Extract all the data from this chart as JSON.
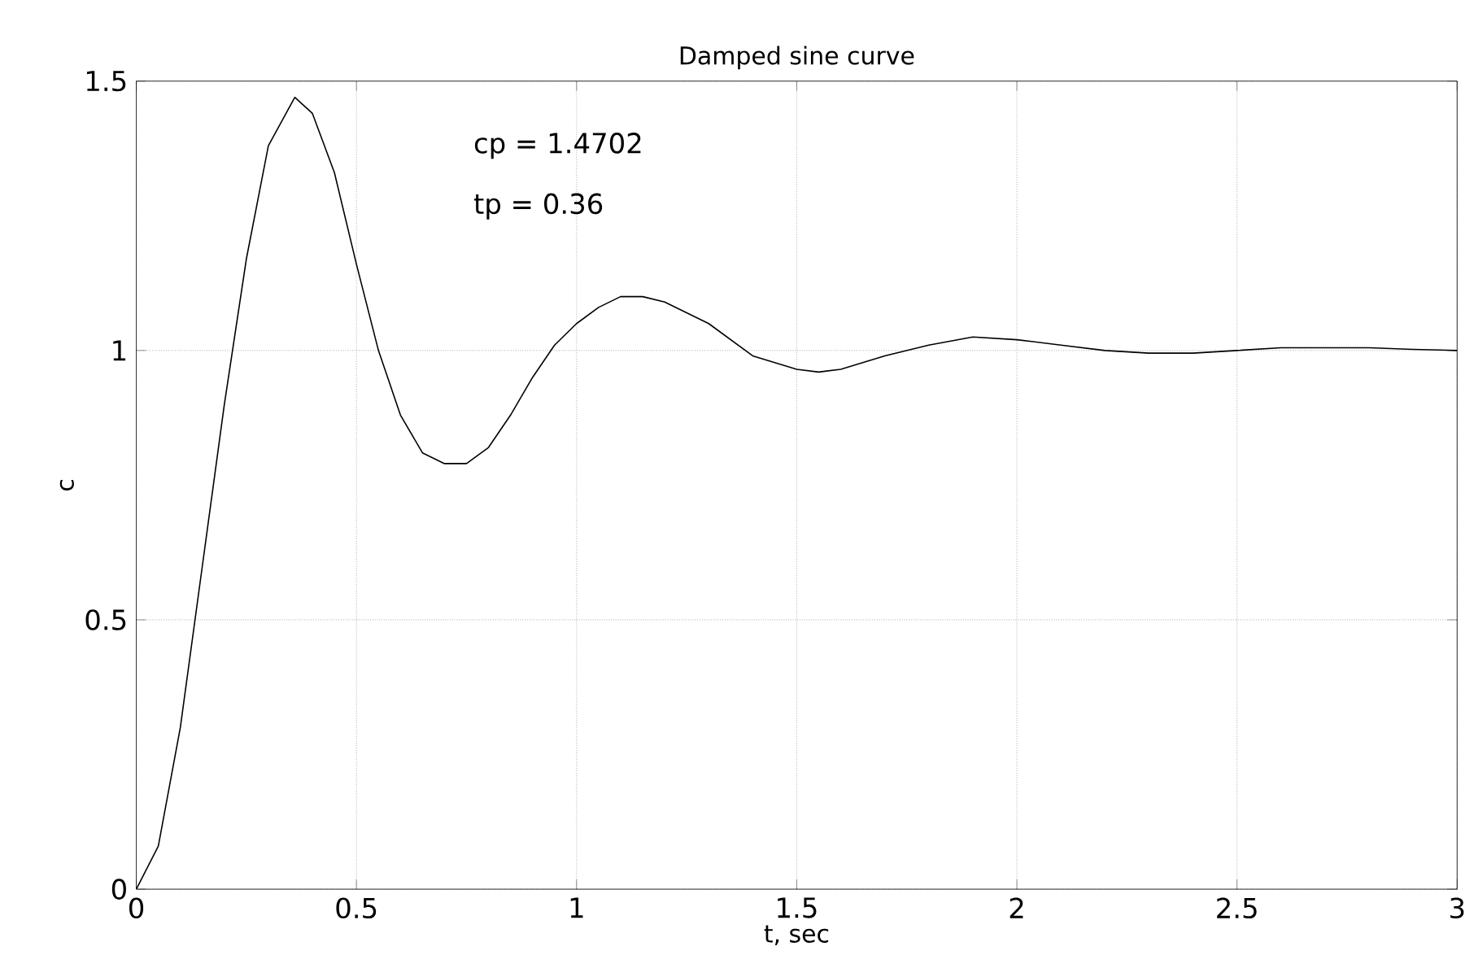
{
  "chart_data": {
    "type": "line",
    "title": "Damped sine curve",
    "xlabel": "t, sec",
    "ylabel": "c",
    "annotations": [
      "cp = 1.4702",
      "tp = 0.36"
    ],
    "x": [
      0,
      0.05,
      0.1,
      0.15,
      0.2,
      0.25,
      0.3,
      0.36,
      0.4,
      0.45,
      0.5,
      0.55,
      0.6,
      0.65,
      0.7,
      0.75,
      0.8,
      0.85,
      0.9,
      0.95,
      1.0,
      1.05,
      1.1,
      1.15,
      1.2,
      1.3,
      1.4,
      1.5,
      1.55,
      1.6,
      1.7,
      1.8,
      1.9,
      2.0,
      2.1,
      2.2,
      2.3,
      2.4,
      2.5,
      2.6,
      2.7,
      2.8,
      2.9,
      3.0
    ],
    "series": [
      {
        "color": "#000000",
        "values": [
          0,
          0.08,
          0.3,
          0.6,
          0.9,
          1.17,
          1.38,
          1.47,
          1.44,
          1.33,
          1.16,
          1.0,
          0.88,
          0.81,
          0.79,
          0.79,
          0.82,
          0.88,
          0.95,
          1.01,
          1.05,
          1.08,
          1.1,
          1.1,
          1.09,
          1.05,
          0.99,
          0.965,
          0.96,
          0.965,
          0.99,
          1.01,
          1.025,
          1.02,
          1.01,
          1.0,
          0.995,
          0.995,
          1.0,
          1.005,
          1.005,
          1.005,
          1.002,
          1.0
        ]
      }
    ],
    "xlim": [
      0,
      3
    ],
    "ylim": [
      0,
      1.5
    ],
    "xticks": [
      0,
      0.5,
      1,
      1.5,
      2,
      2.5,
      3
    ],
    "yticks": [
      0,
      0.5,
      1,
      1.5
    ],
    "grid": true,
    "marker": "none",
    "line_style": "solid"
  }
}
